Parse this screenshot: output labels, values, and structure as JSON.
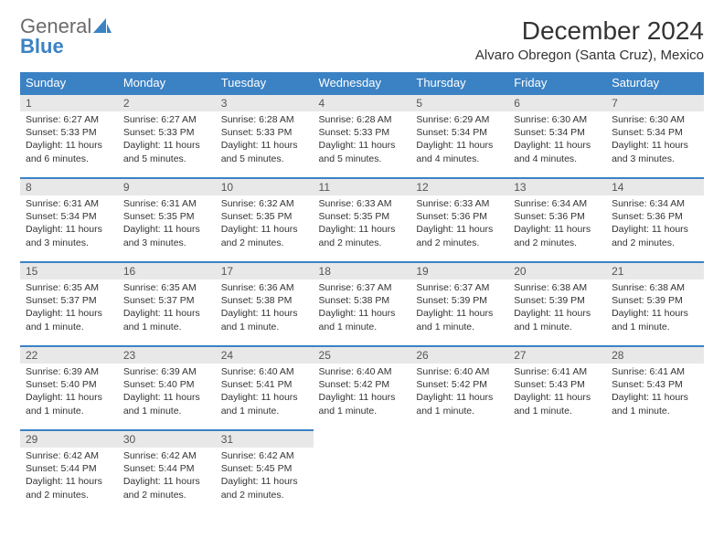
{
  "logo": {
    "general": "General",
    "blue": "Blue"
  },
  "title": "December 2024",
  "location": "Alvaro Obregon (Santa Cruz), Mexico",
  "colors": {
    "header_bg": "#3b82c4",
    "header_text": "#ffffff",
    "daynum_bg": "#e8e8e8",
    "daynum_border": "#3b82c4",
    "body_text": "#333333",
    "logo_gray": "#6b6b6b",
    "logo_blue": "#3b82c4"
  },
  "day_headers": [
    "Sunday",
    "Monday",
    "Tuesday",
    "Wednesday",
    "Thursday",
    "Friday",
    "Saturday"
  ],
  "weeks": [
    [
      {
        "num": "1",
        "sunrise": "Sunrise: 6:27 AM",
        "sunset": "Sunset: 5:33 PM",
        "daylight": "Daylight: 11 hours and 6 minutes."
      },
      {
        "num": "2",
        "sunrise": "Sunrise: 6:27 AM",
        "sunset": "Sunset: 5:33 PM",
        "daylight": "Daylight: 11 hours and 5 minutes."
      },
      {
        "num": "3",
        "sunrise": "Sunrise: 6:28 AM",
        "sunset": "Sunset: 5:33 PM",
        "daylight": "Daylight: 11 hours and 5 minutes."
      },
      {
        "num": "4",
        "sunrise": "Sunrise: 6:28 AM",
        "sunset": "Sunset: 5:33 PM",
        "daylight": "Daylight: 11 hours and 5 minutes."
      },
      {
        "num": "5",
        "sunrise": "Sunrise: 6:29 AM",
        "sunset": "Sunset: 5:34 PM",
        "daylight": "Daylight: 11 hours and 4 minutes."
      },
      {
        "num": "6",
        "sunrise": "Sunrise: 6:30 AM",
        "sunset": "Sunset: 5:34 PM",
        "daylight": "Daylight: 11 hours and 4 minutes."
      },
      {
        "num": "7",
        "sunrise": "Sunrise: 6:30 AM",
        "sunset": "Sunset: 5:34 PM",
        "daylight": "Daylight: 11 hours and 3 minutes."
      }
    ],
    [
      {
        "num": "8",
        "sunrise": "Sunrise: 6:31 AM",
        "sunset": "Sunset: 5:34 PM",
        "daylight": "Daylight: 11 hours and 3 minutes."
      },
      {
        "num": "9",
        "sunrise": "Sunrise: 6:31 AM",
        "sunset": "Sunset: 5:35 PM",
        "daylight": "Daylight: 11 hours and 3 minutes."
      },
      {
        "num": "10",
        "sunrise": "Sunrise: 6:32 AM",
        "sunset": "Sunset: 5:35 PM",
        "daylight": "Daylight: 11 hours and 2 minutes."
      },
      {
        "num": "11",
        "sunrise": "Sunrise: 6:33 AM",
        "sunset": "Sunset: 5:35 PM",
        "daylight": "Daylight: 11 hours and 2 minutes."
      },
      {
        "num": "12",
        "sunrise": "Sunrise: 6:33 AM",
        "sunset": "Sunset: 5:36 PM",
        "daylight": "Daylight: 11 hours and 2 minutes."
      },
      {
        "num": "13",
        "sunrise": "Sunrise: 6:34 AM",
        "sunset": "Sunset: 5:36 PM",
        "daylight": "Daylight: 11 hours and 2 minutes."
      },
      {
        "num": "14",
        "sunrise": "Sunrise: 6:34 AM",
        "sunset": "Sunset: 5:36 PM",
        "daylight": "Daylight: 11 hours and 2 minutes."
      }
    ],
    [
      {
        "num": "15",
        "sunrise": "Sunrise: 6:35 AM",
        "sunset": "Sunset: 5:37 PM",
        "daylight": "Daylight: 11 hours and 1 minute."
      },
      {
        "num": "16",
        "sunrise": "Sunrise: 6:35 AM",
        "sunset": "Sunset: 5:37 PM",
        "daylight": "Daylight: 11 hours and 1 minute."
      },
      {
        "num": "17",
        "sunrise": "Sunrise: 6:36 AM",
        "sunset": "Sunset: 5:38 PM",
        "daylight": "Daylight: 11 hours and 1 minute."
      },
      {
        "num": "18",
        "sunrise": "Sunrise: 6:37 AM",
        "sunset": "Sunset: 5:38 PM",
        "daylight": "Daylight: 11 hours and 1 minute."
      },
      {
        "num": "19",
        "sunrise": "Sunrise: 6:37 AM",
        "sunset": "Sunset: 5:39 PM",
        "daylight": "Daylight: 11 hours and 1 minute."
      },
      {
        "num": "20",
        "sunrise": "Sunrise: 6:38 AM",
        "sunset": "Sunset: 5:39 PM",
        "daylight": "Daylight: 11 hours and 1 minute."
      },
      {
        "num": "21",
        "sunrise": "Sunrise: 6:38 AM",
        "sunset": "Sunset: 5:39 PM",
        "daylight": "Daylight: 11 hours and 1 minute."
      }
    ],
    [
      {
        "num": "22",
        "sunrise": "Sunrise: 6:39 AM",
        "sunset": "Sunset: 5:40 PM",
        "daylight": "Daylight: 11 hours and 1 minute."
      },
      {
        "num": "23",
        "sunrise": "Sunrise: 6:39 AM",
        "sunset": "Sunset: 5:40 PM",
        "daylight": "Daylight: 11 hours and 1 minute."
      },
      {
        "num": "24",
        "sunrise": "Sunrise: 6:40 AM",
        "sunset": "Sunset: 5:41 PM",
        "daylight": "Daylight: 11 hours and 1 minute."
      },
      {
        "num": "25",
        "sunrise": "Sunrise: 6:40 AM",
        "sunset": "Sunset: 5:42 PM",
        "daylight": "Daylight: 11 hours and 1 minute."
      },
      {
        "num": "26",
        "sunrise": "Sunrise: 6:40 AM",
        "sunset": "Sunset: 5:42 PM",
        "daylight": "Daylight: 11 hours and 1 minute."
      },
      {
        "num": "27",
        "sunrise": "Sunrise: 6:41 AM",
        "sunset": "Sunset: 5:43 PM",
        "daylight": "Daylight: 11 hours and 1 minute."
      },
      {
        "num": "28",
        "sunrise": "Sunrise: 6:41 AM",
        "sunset": "Sunset: 5:43 PM",
        "daylight": "Daylight: 11 hours and 1 minute."
      }
    ],
    [
      {
        "num": "29",
        "sunrise": "Sunrise: 6:42 AM",
        "sunset": "Sunset: 5:44 PM",
        "daylight": "Daylight: 11 hours and 2 minutes."
      },
      {
        "num": "30",
        "sunrise": "Sunrise: 6:42 AM",
        "sunset": "Sunset: 5:44 PM",
        "daylight": "Daylight: 11 hours and 2 minutes."
      },
      {
        "num": "31",
        "sunrise": "Sunrise: 6:42 AM",
        "sunset": "Sunset: 5:45 PM",
        "daylight": "Daylight: 11 hours and 2 minutes."
      },
      {
        "empty": true
      },
      {
        "empty": true
      },
      {
        "empty": true
      },
      {
        "empty": true
      }
    ]
  ]
}
